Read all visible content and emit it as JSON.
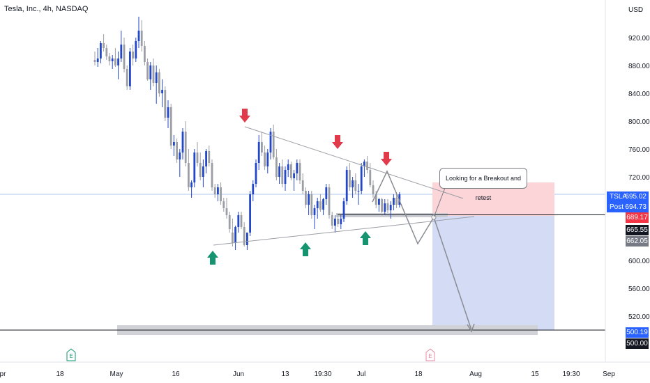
{
  "title": "Tesla, Inc., 4h, NASDAQ",
  "currency": "USD",
  "colors": {
    "up": "#2347c6",
    "down": "#9c9ea5",
    "bear_arrow": "#e03a4b",
    "bull_arrow": "#16946f",
    "price_line": "#b2c8ee",
    "target_zone": "#d3dbf5",
    "stop_zone": "#fbd5d8"
  },
  "price_tags": [
    {
      "id": "symbol",
      "label": "TSLA",
      "value": "695.02",
      "bg": "#2962ff",
      "fg": "#ffffff"
    },
    {
      "id": "post",
      "label": "Post",
      "value": "694.73",
      "bg": "#2962ff",
      "fg": "#ffffff"
    },
    {
      "id": "resistance",
      "label": "",
      "value": "689.17",
      "bg": "#f23645",
      "fg": "#ffffff"
    },
    {
      "id": "level",
      "label": "",
      "value": "665.55",
      "bg": "#131722",
      "fg": "#ffffff"
    },
    {
      "id": "stop",
      "label": "",
      "value": "662.05",
      "bg": "#787b86",
      "fg": "#ffffff"
    },
    {
      "id": "target",
      "label": "",
      "value": "500.19",
      "bg": "#2962ff",
      "fg": "#ffffff"
    },
    {
      "id": "support",
      "label": "",
      "value": "500.00",
      "bg": "#131722",
      "fg": "#ffffff"
    }
  ],
  "annotation": "Looking for a Breakout and retest",
  "event_markers": [
    "E",
    "E"
  ],
  "chart_data": {
    "type": "candlestick",
    "title": "Tesla, Inc., 4h, NASDAQ",
    "y_axis": {
      "unit": "USD",
      "ticks": [
        920,
        880,
        840,
        800,
        760,
        720,
        600,
        560,
        520
      ],
      "range": [
        488,
        972
      ]
    },
    "x_ticks": [
      "pr",
      "18",
      "May",
      "16",
      "Jun",
      "13",
      "19:30",
      "Jul",
      "18",
      "Aug",
      "15",
      "19:30",
      "Sep"
    ],
    "last_price": 695.02,
    "post_price": 694.73,
    "levels": [
      689.17,
      665.55,
      662.05,
      500.19,
      500.0
    ],
    "grid": false,
    "candles": [
      [
        888,
        900,
        880,
        885
      ],
      [
        885,
        905,
        878,
        890
      ],
      [
        890,
        915,
        883,
        912
      ],
      [
        912,
        925,
        900,
        905
      ],
      [
        905,
        910,
        888,
        893
      ],
      [
        893,
        898,
        880,
        886
      ],
      [
        886,
        895,
        875,
        890
      ],
      [
        890,
        905,
        878,
        880
      ],
      [
        880,
        900,
        860,
        890
      ],
      [
        890,
        930,
        885,
        910
      ],
      [
        910,
        920,
        870,
        875
      ],
      [
        875,
        880,
        845,
        850
      ],
      [
        850,
        905,
        845,
        900
      ],
      [
        900,
        910,
        880,
        890
      ],
      [
        890,
        920,
        885,
        915
      ],
      [
        915,
        950,
        905,
        930
      ],
      [
        930,
        945,
        900,
        908
      ],
      [
        908,
        915,
        880,
        885
      ],
      [
        885,
        890,
        858,
        860
      ],
      [
        860,
        885,
        845,
        880
      ],
      [
        880,
        890,
        850,
        855
      ],
      [
        855,
        880,
        825,
        870
      ],
      [
        870,
        875,
        835,
        840
      ],
      [
        840,
        860,
        820,
        845
      ],
      [
        845,
        850,
        800,
        805
      ],
      [
        805,
        830,
        790,
        820
      ],
      [
        820,
        825,
        760,
        765
      ],
      [
        765,
        780,
        750,
        770
      ],
      [
        770,
        775,
        740,
        745
      ],
      [
        745,
        760,
        720,
        755
      ],
      [
        755,
        790,
        745,
        785
      ],
      [
        785,
        800,
        735,
        740
      ],
      [
        740,
        760,
        700,
        705
      ],
      [
        705,
        715,
        690,
        712
      ],
      [
        712,
        760,
        705,
        755
      ],
      [
        755,
        770,
        735,
        740
      ],
      [
        740,
        755,
        715,
        720
      ],
      [
        720,
        745,
        705,
        735
      ],
      [
        735,
        760,
        725,
        757
      ],
      [
        757,
        765,
        735,
        740
      ],
      [
        740,
        745,
        700,
        705
      ],
      [
        705,
        710,
        690,
        695
      ],
      [
        695,
        710,
        685,
        705
      ],
      [
        705,
        712,
        680,
        685
      ],
      [
        685,
        690,
        670,
        675
      ],
      [
        675,
        690,
        660,
        665
      ],
      [
        665,
        670,
        640,
        645
      ],
      [
        640,
        660,
        620,
        625
      ],
      [
        625,
        650,
        615,
        648
      ],
      [
        648,
        670,
        640,
        665
      ],
      [
        665,
        670,
        645,
        648
      ],
      [
        648,
        655,
        620,
        622
      ],
      [
        622,
        640,
        615,
        640
      ],
      [
        640,
        700,
        635,
        695
      ],
      [
        695,
        715,
        685,
        710
      ],
      [
        710,
        745,
        705,
        740
      ],
      [
        740,
        780,
        730,
        770
      ],
      [
        770,
        785,
        750,
        755
      ],
      [
        755,
        765,
        730,
        735
      ],
      [
        735,
        760,
        725,
        755
      ],
      [
        755,
        790,
        745,
        785
      ],
      [
        785,
        795,
        745,
        748
      ],
      [
        748,
        760,
        715,
        720
      ],
      [
        720,
        740,
        710,
        735
      ],
      [
        735,
        745,
        705,
        710
      ],
      [
        710,
        735,
        700,
        730
      ],
      [
        730,
        745,
        720,
        738
      ],
      [
        738,
        742,
        715,
        718
      ],
      [
        718,
        730,
        700,
        725
      ],
      [
        725,
        745,
        715,
        740
      ],
      [
        740,
        745,
        710,
        715
      ],
      [
        715,
        725,
        695,
        700
      ],
      [
        700,
        705,
        675,
        680
      ],
      [
        680,
        700,
        665,
        695
      ],
      [
        695,
        700,
        660,
        665
      ],
      [
        665,
        680,
        645,
        675
      ],
      [
        675,
        690,
        660,
        685
      ],
      [
        685,
        695,
        670,
        673
      ],
      [
        673,
        690,
        665,
        688
      ],
      [
        688,
        710,
        680,
        705
      ],
      [
        705,
        710,
        660,
        665
      ],
      [
        665,
        670,
        645,
        650
      ],
      [
        650,
        665,
        640,
        660
      ],
      [
        660,
        665,
        648,
        652
      ],
      [
        652,
        665,
        645,
        660
      ],
      [
        660,
        690,
        655,
        685
      ],
      [
        685,
        735,
        680,
        730
      ],
      [
        730,
        740,
        700,
        705
      ],
      [
        705,
        720,
        690,
        715
      ],
      [
        715,
        725,
        695,
        700
      ],
      [
        700,
        710,
        680,
        700
      ],
      [
        700,
        740,
        695,
        735
      ],
      [
        735,
        745,
        720,
        742
      ],
      [
        742,
        750,
        725,
        730
      ],
      [
        730,
        740,
        705,
        708
      ],
      [
        708,
        715,
        690,
        695
      ],
      [
        695,
        700,
        675,
        680
      ],
      [
        680,
        690,
        670,
        688
      ],
      [
        688,
        690,
        668,
        670
      ],
      [
        670,
        688,
        665,
        682
      ],
      [
        682,
        688,
        668,
        672
      ],
      [
        672,
        685,
        660,
        680
      ],
      [
        680,
        695,
        672,
        690
      ],
      [
        690,
        698,
        675,
        680
      ],
      [
        680,
        698,
        676,
        695
      ]
    ],
    "lines": [
      {
        "name": "",
        "points": [
          [
            30,
            627
          ],
          [
            83,
            662
          ]
        ]
      },
      {
        "name": "",
        "points": [
          [
            32,
            790
          ],
          [
            107,
            695
          ]
        ]
      }
    ]
  }
}
